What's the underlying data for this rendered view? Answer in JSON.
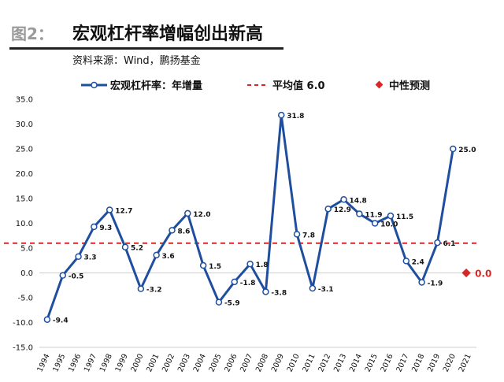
{
  "header": {
    "figure_label": "图2：",
    "title": "宏观杠杆率增幅创出新高",
    "source": "资料来源：Wind，鹏扬基金"
  },
  "chart_data": {
    "type": "line",
    "title": "",
    "xlabel": "",
    "ylabel": "",
    "categories": [
      "1994",
      "1995",
      "1996",
      "1997",
      "1998",
      "1999",
      "2000",
      "2001",
      "2002",
      "2003",
      "2004",
      "2005",
      "2006",
      "2007",
      "2008",
      "2009",
      "2010",
      "2011",
      "2012",
      "2013",
      "2014",
      "2015",
      "2016",
      "2017",
      "2018",
      "2019",
      "2020",
      "2021"
    ],
    "series": [
      {
        "name": "宏观杠杆率：年增量",
        "values": [
          -9.4,
          -0.5,
          3.3,
          9.3,
          12.7,
          5.2,
          -3.2,
          3.6,
          8.6,
          12.0,
          1.5,
          -5.9,
          -1.8,
          1.8,
          -3.8,
          31.8,
          7.8,
          -3.1,
          12.9,
          14.8,
          11.9,
          10.0,
          11.5,
          2.4,
          -1.9,
          6.1,
          25.0,
          null
        ],
        "labels": [
          "-9.4",
          "-0.5",
          "3.3",
          "9.3",
          "12.7",
          "5.2",
          "-3.2",
          "3.6",
          "8.6",
          "12.0",
          "1.5",
          "-5.9",
          "-1.8",
          "1.8",
          "-3.8",
          "31.8",
          "7.8",
          "-3.1",
          "12.9",
          "14.8",
          "11.9",
          "10.0",
          "11.5",
          "2.4",
          "-1.9",
          "6.1",
          "25.0",
          ""
        ],
        "color": "#1f4e9e"
      }
    ],
    "reference_line": {
      "name": "平均值 6.0",
      "value": 6.0,
      "color": "#d62828"
    },
    "forecast": {
      "name": "中性预测",
      "category": "2021",
      "value": 0.0,
      "label": "0.0",
      "color": "#d62828"
    },
    "ylim": [
      -15,
      35
    ],
    "yticks": [
      "35.0",
      "30.0",
      "25.0",
      "20.0",
      "15.0",
      "10.0",
      "5.0",
      "0.0",
      "-5.0",
      "-10.0",
      "-15.0"
    ],
    "grid": false,
    "legend_position": "top"
  }
}
